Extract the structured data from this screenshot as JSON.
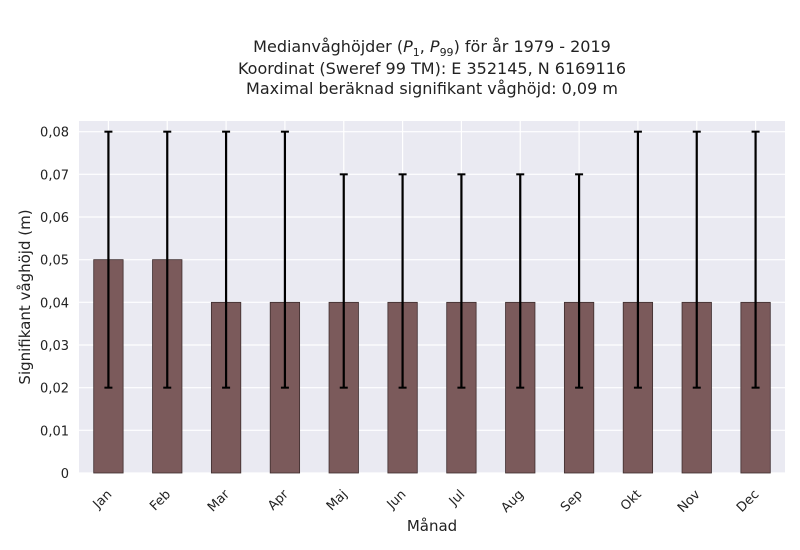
{
  "chart_data": {
    "type": "bar",
    "title_lines": [
      "Medianvåghöjder (P1, P99) för år 1979 - 2019",
      "Koordinat (Sweref 99 TM): E 352145, N 6169116",
      "Maximal beräknad signifikant våghöjd: 0,09 m"
    ],
    "xlabel": "Månad",
    "ylabel": "Signifikant våghöjd (m)",
    "categories": [
      "Jan",
      "Feb",
      "Mar",
      "Apr",
      "Maj",
      "Jun",
      "Jul",
      "Aug",
      "Sep",
      "Okt",
      "Nov",
      "Dec"
    ],
    "values": [
      0.05,
      0.05,
      0.04,
      0.04,
      0.04,
      0.04,
      0.04,
      0.04,
      0.04,
      0.04,
      0.04,
      0.04
    ],
    "err_low": [
      0.02,
      0.02,
      0.02,
      0.02,
      0.02,
      0.02,
      0.02,
      0.02,
      0.02,
      0.02,
      0.02,
      0.02
    ],
    "err_high": [
      0.08,
      0.08,
      0.08,
      0.08,
      0.07,
      0.07,
      0.07,
      0.07,
      0.07,
      0.08,
      0.08,
      0.08
    ],
    "y_ticks": [
      "0",
      "0,01",
      "0,02",
      "0,03",
      "0,04",
      "0,05",
      "0,06",
      "0,07",
      "0,08"
    ],
    "ylim": [
      0,
      0.0825
    ],
    "grid": true,
    "colors": {
      "bar": "#7b5a5b",
      "plot_background": "#eaeaf2",
      "grid": "#ffffff",
      "errorbar": "#000000"
    }
  }
}
